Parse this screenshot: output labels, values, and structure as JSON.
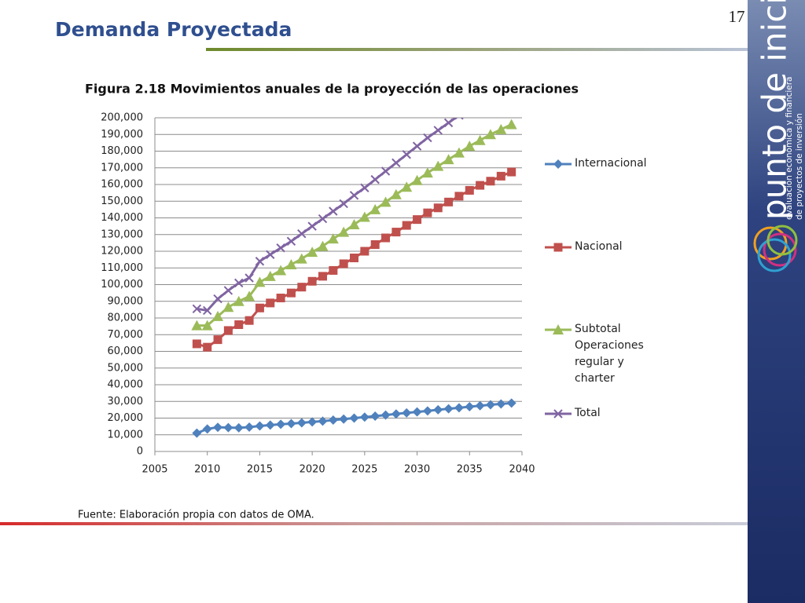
{
  "slide": {
    "title": "Demanda Proyectada",
    "page_number": "17",
    "logo_name": "punto de inicio",
    "logo_tagline_1": "evaluación económica y financiera",
    "logo_tagline_2": "de proyectos de inversión"
  },
  "chart_data": {
    "type": "line",
    "title": "Figura 2.18 Movimientos anuales de la proyección de las operaciones",
    "source": "Fuente: Elaboración propia con datos de OMA.",
    "x": [
      2009,
      2010,
      2011,
      2012,
      2013,
      2014,
      2015,
      2016,
      2017,
      2018,
      2019,
      2020,
      2021,
      2022,
      2023,
      2024,
      2025,
      2026,
      2027,
      2028,
      2029,
      2030,
      2031,
      2032,
      2033,
      2034,
      2035,
      2036,
      2037,
      2038,
      2039
    ],
    "series": [
      {
        "name": "Internacional",
        "color": "#4f81bd",
        "marker": "diamond",
        "values": [
          11000,
          13500,
          14500,
          14300,
          14200,
          14600,
          15300,
          15800,
          16300,
          16700,
          17200,
          17700,
          18200,
          18800,
          19400,
          20000,
          20600,
          21200,
          21800,
          22500,
          23100,
          23700,
          24300,
          25000,
          25600,
          26200,
          26800,
          27400,
          28000,
          28500,
          29000
        ]
      },
      {
        "name": "Nacional",
        "color": "#c0504d",
        "marker": "square",
        "values": [
          64500,
          62500,
          67000,
          72500,
          76000,
          78500,
          86000,
          89000,
          92000,
          95000,
          98500,
          102000,
          105000,
          108500,
          112500,
          116000,
          120000,
          124000,
          128000,
          131500,
          135500,
          139000,
          143000,
          146000,
          149500,
          153000,
          156500,
          159500,
          162000,
          165000,
          167500
        ]
      },
      {
        "name": "Subtotal Operaciones regular y charter",
        "color": "#9bbb59",
        "marker": "triangle",
        "values": [
          75500,
          75500,
          81000,
          86500,
          90000,
          93000,
          101500,
          105000,
          108500,
          112000,
          115500,
          119500,
          123000,
          127500,
          131500,
          136000,
          140500,
          145000,
          149500,
          154000,
          158500,
          162500,
          167000,
          171000,
          175000,
          179000,
          183000,
          186500,
          190000,
          193000,
          196000
        ]
      },
      {
        "name": "Total",
        "color": "#8064a2",
        "marker": "x",
        "values": [
          85500,
          84500,
          91500,
          96500,
          101000,
          104000,
          114000,
          118000,
          122000,
          126000,
          130500,
          135000,
          139500,
          144000,
          148500,
          153500,
          158000,
          163000,
          168000,
          173000,
          178000,
          183000,
          188000,
          192500,
          197000,
          201500,
          null,
          null,
          null,
          null,
          null
        ]
      }
    ],
    "xlim": [
      2005,
      2040
    ],
    "xticks": [
      2005,
      2010,
      2015,
      2020,
      2025,
      2030,
      2035,
      2040
    ],
    "ylim": [
      0,
      200000
    ],
    "yticks": [
      0,
      {
        "value": 10000,
        "label": "10,000"
      },
      {
        "value": 20000,
        "label": "20,000"
      },
      {
        "value": 30000,
        "label": "30,000"
      },
      {
        "value": 40000,
        "label": "40,000"
      },
      {
        "value": 50000,
        "label": "50,000"
      },
      {
        "value": 60000,
        "label": "60,000"
      },
      {
        "value": 70000,
        "label": "70,000"
      },
      {
        "value": 80000,
        "label": "80,000"
      },
      {
        "value": 90000,
        "label": "90,000"
      },
      {
        "value": 100000,
        "label": "100,000"
      },
      {
        "value": 110000,
        "label": "110,000"
      },
      {
        "value": 120000,
        "label": "120,000"
      },
      {
        "value": 130000,
        "label": "130,000"
      },
      {
        "value": 140000,
        "label": "140,000"
      },
      {
        "value": 150000,
        "label": "150,000"
      },
      {
        "value": 160000,
        "label": "160,000"
      },
      {
        "value": 170000,
        "label": "170,000"
      },
      {
        "value": 180000,
        "label": "180,000"
      },
      {
        "value": 190000,
        "label": "190,000"
      },
      {
        "value": 200000,
        "label": "200,000"
      }
    ],
    "grid": true,
    "legend": "right"
  }
}
